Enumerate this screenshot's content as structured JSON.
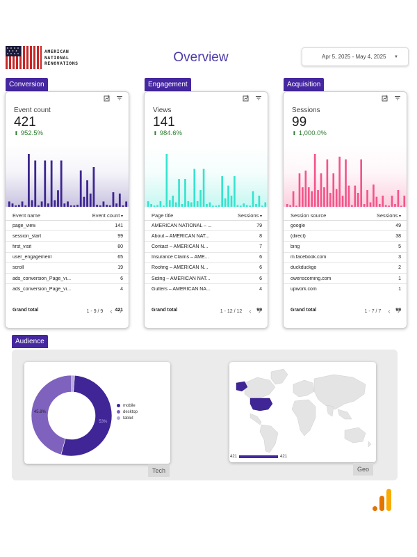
{
  "header": {
    "logo_lines": [
      "AMERICAN",
      "NATIONAL",
      "RENOVATIONS"
    ],
    "title": "Overview",
    "date_range": "Apr 5, 2025 - May 4, 2025"
  },
  "colors": {
    "accent": "#4527a0",
    "conversion": "#3d2690",
    "engagement": "#36e3cf",
    "acquisition": "#f2558a",
    "delta_positive": "#2e7d32"
  },
  "conversion": {
    "tab": "Conversion",
    "metric_name": "Event count",
    "metric_value": "421",
    "delta": "952.5%",
    "spark": [
      8,
      5,
      2,
      3,
      8,
      2,
      80,
      10,
      70,
      2,
      8,
      70,
      5,
      70,
      10,
      25,
      70,
      5,
      8,
      2,
      2,
      3,
      55,
      15,
      40,
      20,
      60,
      3,
      2,
      8,
      3,
      2,
      22,
      5,
      20,
      2,
      8
    ],
    "columns": [
      "Event name",
      "Event count"
    ],
    "rows": [
      [
        "page_view",
        "141"
      ],
      [
        "session_start",
        "99"
      ],
      [
        "first_visit",
        "80"
      ],
      [
        "user_engagement",
        "65"
      ],
      [
        "scroll",
        "19"
      ],
      [
        "ads_conversion_Page_vi...",
        "6"
      ],
      [
        "ads_conversion_Page_vi...",
        "4"
      ]
    ],
    "total_label": "Grand total",
    "total": "421",
    "pager": "1 - 9 / 9"
  },
  "engagement": {
    "tab": "Engagement",
    "metric_name": "Views",
    "metric_value": "141",
    "delta": "984.6%",
    "spark": [
      10,
      5,
      2,
      3,
      10,
      2,
      95,
      12,
      20,
      8,
      50,
      5,
      50,
      10,
      8,
      68,
      10,
      30,
      68,
      5,
      8,
      2,
      2,
      3,
      55,
      15,
      38,
      20,
      55,
      3,
      2,
      6,
      3,
      2,
      28,
      5,
      20,
      2,
      8
    ],
    "columns": [
      "Page title",
      "Sessions"
    ],
    "rows": [
      [
        "AMERICAN NATIONAL – ...",
        "79"
      ],
      [
        "About – AMERICAN NAT...",
        "8"
      ],
      [
        "Contact – AMERICAN N...",
        "7"
      ],
      [
        "Insurance Claims – AME...",
        "6"
      ],
      [
        "Roofing – AMERICAN N...",
        "6"
      ],
      [
        "Siding – AMERICAN NAT...",
        "6"
      ],
      [
        "Gutters – AMERICAN NA...",
        "4"
      ]
    ],
    "total_label": "Grand total",
    "total": "99",
    "pager": "1 - 12 / 12"
  },
  "acquisition": {
    "tab": "Acquisition",
    "metric_name": "Sessions",
    "metric_value": "99",
    "delta": "1,000.0%",
    "spark": [
      5,
      3,
      28,
      2,
      60,
      35,
      65,
      35,
      28,
      95,
      30,
      60,
      35,
      85,
      25,
      60,
      32,
      90,
      20,
      85,
      38,
      3,
      38,
      25,
      85,
      5,
      30,
      8,
      40,
      18,
      5,
      20,
      3,
      2,
      20,
      5,
      30,
      2,
      20
    ],
    "columns": [
      "Session source",
      "Sessions"
    ],
    "rows": [
      [
        "google",
        "49"
      ],
      [
        "(direct)",
        "38"
      ],
      [
        "bing",
        "5"
      ],
      [
        "m.facebook.com",
        "3"
      ],
      [
        "duckduckgo",
        "2"
      ],
      [
        "owenscorning.com",
        "1"
      ],
      [
        "upwork.com",
        "1"
      ]
    ],
    "total_label": "Grand total",
    "total": "99",
    "pager": "1 - 7 / 7"
  },
  "audience": {
    "tab": "Audience",
    "tech_label": "Tech",
    "geo_label": "Geo",
    "device_slices": [
      {
        "name": "mobile",
        "value": 53,
        "label": "53%",
        "color": "#3f2596"
      },
      {
        "name": "desktop",
        "value": 45.8,
        "label": "45.8%",
        "color": "#7e62bd"
      },
      {
        "name": "tablet",
        "value": 1.2,
        "label": "",
        "color": "#b6a7dc"
      }
    ],
    "geo_min": "421",
    "geo_max": "421"
  }
}
